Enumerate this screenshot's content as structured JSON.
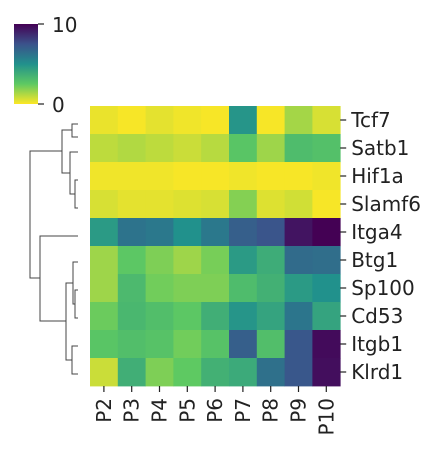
{
  "chart_data": {
    "type": "heatmap",
    "title": "",
    "xlabel": "",
    "ylabel": "",
    "columns": [
      "P2",
      "P3",
      "P4",
      "P5",
      "P6",
      "P7",
      "P8",
      "P9",
      "P10"
    ],
    "rows": [
      "Tcf7",
      "Satb1",
      "Hif1a",
      "Slamf6",
      "Itga4",
      "Btg1",
      "Sp100",
      "Cd53",
      "Itgb1",
      "Klrd1"
    ],
    "values": [
      [
        0.3,
        0.1,
        0.4,
        0.2,
        0.1,
        4.8,
        0.1,
        1.4,
        0.6
      ],
      [
        1.0,
        1.2,
        1.0,
        0.8,
        1.1,
        2.7,
        1.5,
        3.1,
        2.9
      ],
      [
        0.2,
        0.2,
        0.2,
        0.1,
        0.1,
        0.2,
        0.1,
        0.1,
        0.2
      ],
      [
        0.6,
        0.4,
        0.4,
        0.5,
        0.6,
        1.9,
        0.5,
        0.7,
        0.1
      ],
      [
        4.6,
        6.2,
        6.0,
        5.0,
        6.0,
        7.0,
        7.4,
        9.4,
        10.0
      ],
      [
        1.5,
        2.6,
        2.0,
        1.5,
        2.1,
        4.6,
        3.8,
        6.5,
        6.4
      ],
      [
        1.5,
        3.2,
        2.2,
        2.0,
        2.0,
        3.1,
        3.6,
        4.6,
        5.0
      ],
      [
        2.3,
        3.3,
        3.0,
        2.6,
        3.7,
        4.8,
        4.2,
        6.1,
        4.2
      ],
      [
        2.7,
        3.0,
        2.8,
        2.2,
        2.8,
        7.0,
        3.0,
        7.3,
        9.7
      ],
      [
        0.8,
        3.7,
        2.0,
        2.5,
        3.6,
        3.9,
        6.3,
        7.3,
        9.6
      ]
    ],
    "colorbar": {
      "min": 0,
      "max": 10,
      "min_label": "0",
      "max_label": "10",
      "colormap": "viridis_r",
      "placement": "top-left"
    },
    "dendrogram": {
      "side": "left",
      "clusters": "rows"
    }
  }
}
